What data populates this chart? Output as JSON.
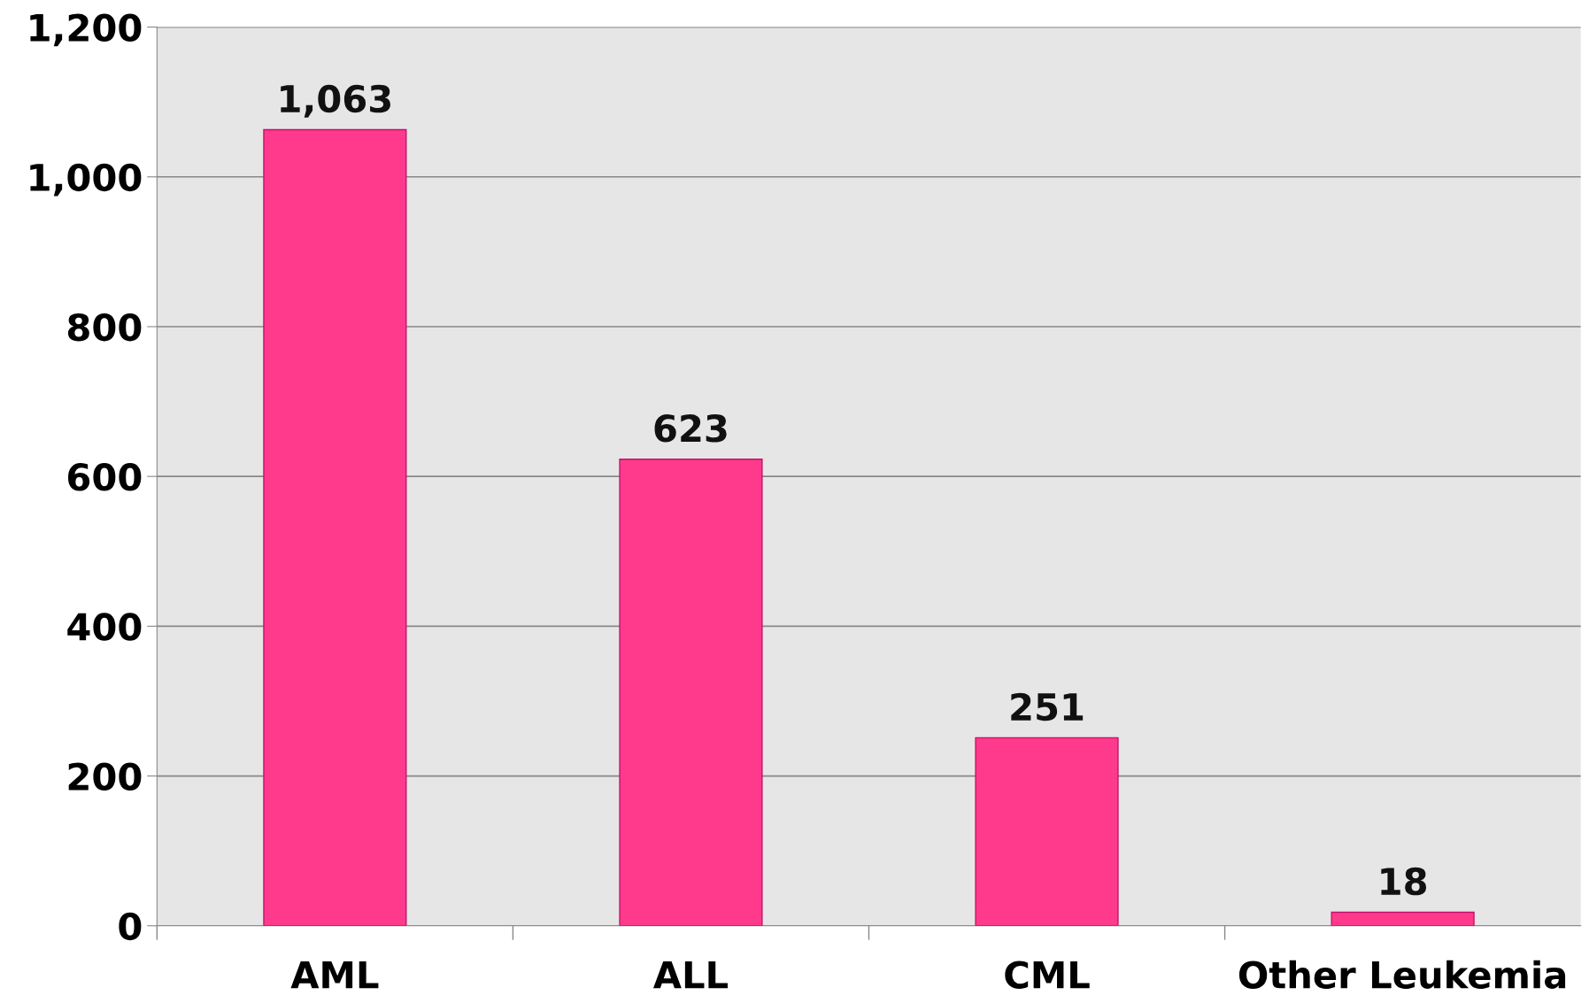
{
  "chart_data": {
    "type": "bar",
    "categories": [
      "AML",
      "ALL",
      "CML",
      "Other Leukemia"
    ],
    "values": [
      1063,
      623,
      251,
      18
    ],
    "value_labels": [
      "1,063",
      "623",
      "251",
      "18"
    ],
    "color": "#ff3a8c",
    "ylim": [
      0,
      1200
    ],
    "yticks": [
      0,
      200,
      400,
      600,
      800,
      {
        "value": 1000,
        "label": "1,000"
      },
      {
        "value": 1200,
        "label": "1,200"
      }
    ],
    "grid": "y",
    "legend": false
  }
}
